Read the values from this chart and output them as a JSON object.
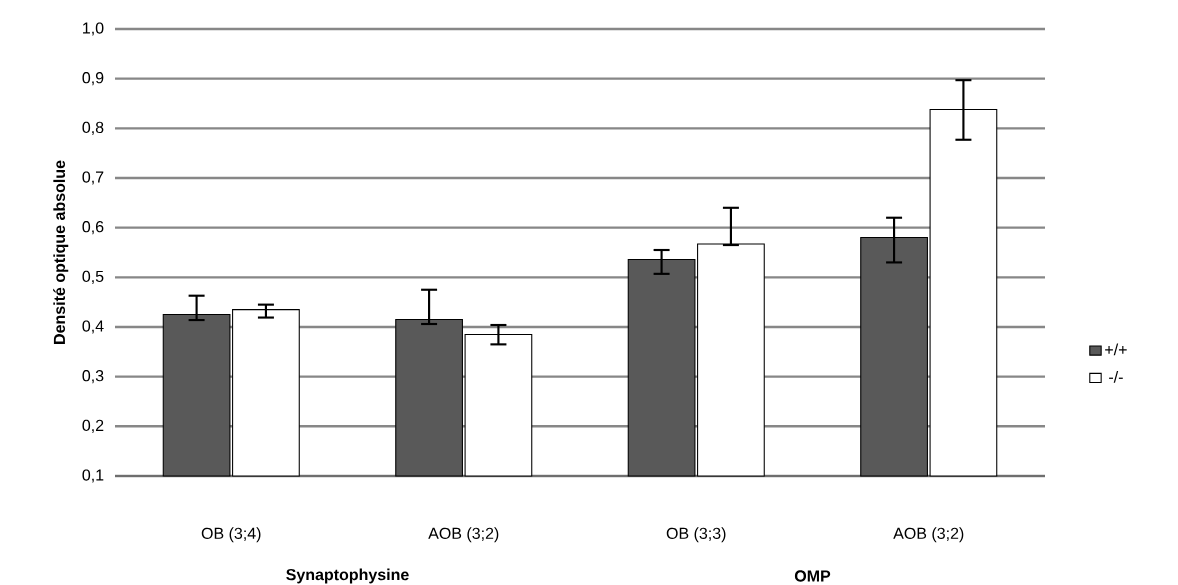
{
  "chart_data": {
    "type": "bar",
    "ylabel": "Densité optique absolue",
    "categories": [
      "OB (3;4)",
      "AOB (3;2)",
      "OB (3;3)",
      "AOB (3;2)"
    ],
    "series": [
      {
        "name": "+/+",
        "color": "#595959",
        "values": [
          0.425,
          0.415,
          0.536,
          0.58
        ],
        "errors": [
          [
            0.414,
            0.463
          ],
          [
            0.406,
            0.475
          ],
          [
            0.507,
            0.555
          ],
          [
            0.53,
            0.62
          ]
        ]
      },
      {
        "name": "-/-",
        "color": "#ffffff",
        "values": [
          0.435,
          0.385,
          0.567,
          0.838
        ],
        "errors": [
          [
            0.419,
            0.445
          ],
          [
            0.365,
            0.404
          ],
          [
            0.565,
            0.64
          ],
          [
            0.777,
            0.897
          ]
        ]
      }
    ],
    "annotations": [
      "Synaptophysine",
      "OMP"
    ],
    "ylim": [
      0.1,
      1.0
    ],
    "yticks": [
      {
        "value": 0.1,
        "label": "0,1"
      },
      {
        "value": 0.2,
        "label": "0,2"
      },
      {
        "value": 0.3,
        "label": "0,3"
      },
      {
        "value": 0.4,
        "label": "0,4"
      },
      {
        "value": 0.5,
        "label": "0,5"
      },
      {
        "value": 0.6,
        "label": "0,6"
      },
      {
        "value": 0.7,
        "label": "0,7"
      },
      {
        "value": 0.8,
        "label": "0,8"
      },
      {
        "value": 0.9,
        "label": "0,9"
      },
      {
        "value": 1.0,
        "label": "1,0"
      }
    ],
    "grid": "y",
    "legend": "right"
  }
}
